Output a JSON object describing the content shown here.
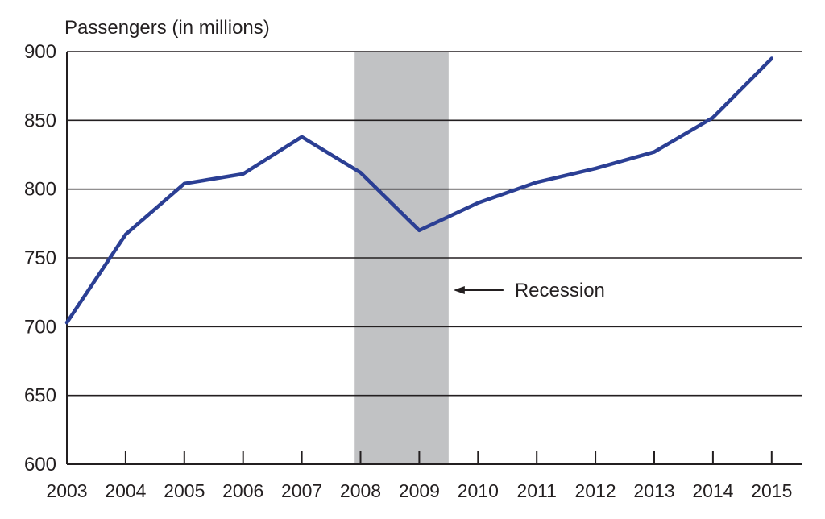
{
  "chart_data": {
    "type": "line",
    "ylabel": "Passengers (in millions)",
    "xlabel": "",
    "title": "",
    "x": [
      "2003",
      "2004",
      "2005",
      "2006",
      "2007",
      "2008",
      "2009",
      "2010",
      "2011",
      "2012",
      "2013",
      "2014",
      "2015"
    ],
    "series": [
      {
        "values": [
          703,
          767,
          804,
          811,
          838,
          812,
          770,
          790,
          805,
          815,
          827,
          852,
          895
        ]
      }
    ],
    "ylim": [
      600,
      900
    ],
    "yticks": [
      600,
      650,
      700,
      750,
      800,
      850,
      900
    ],
    "grid": true,
    "shaded_region": {
      "from": "2007.9",
      "to": "2009.5"
    },
    "annotation": {
      "text": "Recession",
      "arrow": "left"
    },
    "colors": {
      "line": "#2b3f94",
      "shade": "#c1c2c4",
      "grid": "#231f20"
    }
  }
}
